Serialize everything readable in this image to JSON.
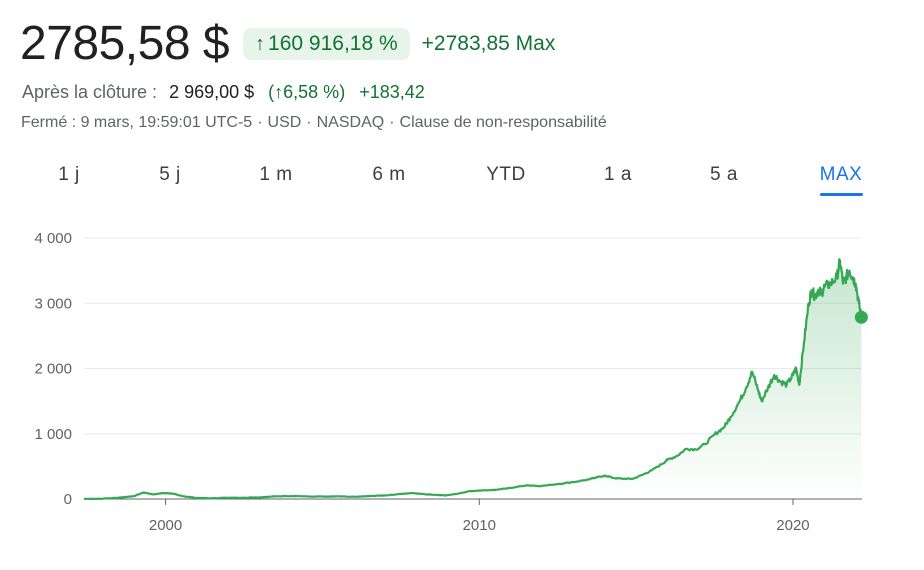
{
  "header": {
    "price": "2785,58 $",
    "pct_change": "160 916,18 %",
    "abs_change": "+2783,85 Max"
  },
  "after_hours": {
    "label": "Après la clôture :",
    "price": "2 969,00 $",
    "pct": "6,58 %",
    "change": "+183,42"
  },
  "meta": {
    "closed": "Fermé : 9 mars, 19:59:01 UTC-5",
    "currency": "USD",
    "exchange": "NASDAQ",
    "disclaimer": "Clause de non-responsabilité"
  },
  "tabs": [
    {
      "label": "1 j"
    },
    {
      "label": "5 j"
    },
    {
      "label": "1 m"
    },
    {
      "label": "6 m"
    },
    {
      "label": "YTD"
    },
    {
      "label": "1 a"
    },
    {
      "label": "5 a"
    },
    {
      "label": "MAX",
      "active": true
    }
  ],
  "colors": {
    "line": "#34a853",
    "positive": "#137333",
    "chip_bg": "#e6f4ea",
    "active_tab": "#1a73e8",
    "grid": "#e8eaed"
  },
  "icons": {
    "up_arrow": "arrow-up-icon"
  },
  "chart_data": {
    "type": "area",
    "title": "",
    "xlabel": "",
    "ylabel": "",
    "ylim": [
      0,
      4000
    ],
    "xlim": [
      1997.4,
      2022.2
    ],
    "y_ticks": [
      0,
      1000,
      2000,
      3000,
      4000
    ],
    "y_tick_labels": [
      "0",
      "1 000",
      "2 000",
      "3 000",
      "4 000"
    ],
    "x_ticks": [
      2000,
      2010,
      2020
    ],
    "x_tick_labels": [
      "2000",
      "2010",
      "2020"
    ],
    "grid": true,
    "series": [
      {
        "x": [
          1997.4,
          1998.0,
          1998.5,
          1999.0,
          1999.3,
          1999.6,
          1999.9,
          2000.2,
          2000.6,
          2001.0,
          2001.5,
          2002.0,
          2002.5,
          2003.0,
          2003.5,
          2004.0,
          2004.5,
          2005.0,
          2005.5,
          2006.0,
          2006.5,
          2007.0,
          2007.5,
          2007.9,
          2008.3,
          2008.7,
          2008.95,
          2009.3,
          2009.7,
          2010.0,
          2010.5,
          2011.0,
          2011.5,
          2012.0,
          2012.5,
          2013.0,
          2013.5,
          2014.0,
          2014.3,
          2014.6,
          2014.9,
          2015.2,
          2015.5,
          2015.8,
          2016.0,
          2016.3,
          2016.6,
          2016.9,
          2017.2,
          2017.5,
          2017.8,
          2018.0,
          2018.3,
          2018.5,
          2018.7,
          2018.9,
          2019.0,
          2019.2,
          2019.4,
          2019.6,
          2019.8,
          2020.0,
          2020.1,
          2020.2,
          2020.35,
          2020.5,
          2020.6,
          2020.7,
          2020.8,
          2020.9,
          2021.0,
          2021.2,
          2021.4,
          2021.5,
          2021.6,
          2021.7,
          2021.8,
          2021.9,
          2022.0,
          2022.1,
          2022.18
        ],
        "y": [
          2,
          5,
          20,
          45,
          100,
          70,
          90,
          85,
          40,
          15,
          12,
          18,
          20,
          25,
          40,
          45,
          40,
          38,
          42,
          35,
          45,
          55,
          80,
          90,
          70,
          60,
          55,
          80,
          120,
          130,
          140,
          170,
          210,
          200,
          230,
          260,
          300,
          360,
          320,
          310,
          310,
          370,
          440,
          530,
          600,
          660,
          770,
          760,
          840,
          990,
          1100,
          1250,
          1500,
          1700,
          1950,
          1650,
          1500,
          1700,
          1900,
          1800,
          1750,
          1900,
          2000,
          1750,
          2400,
          3000,
          3200,
          3100,
          3200,
          3150,
          3250,
          3300,
          3400,
          3650,
          3300,
          3400,
          3500,
          3400,
          3300,
          3000,
          2785.58
        ]
      }
    ]
  }
}
